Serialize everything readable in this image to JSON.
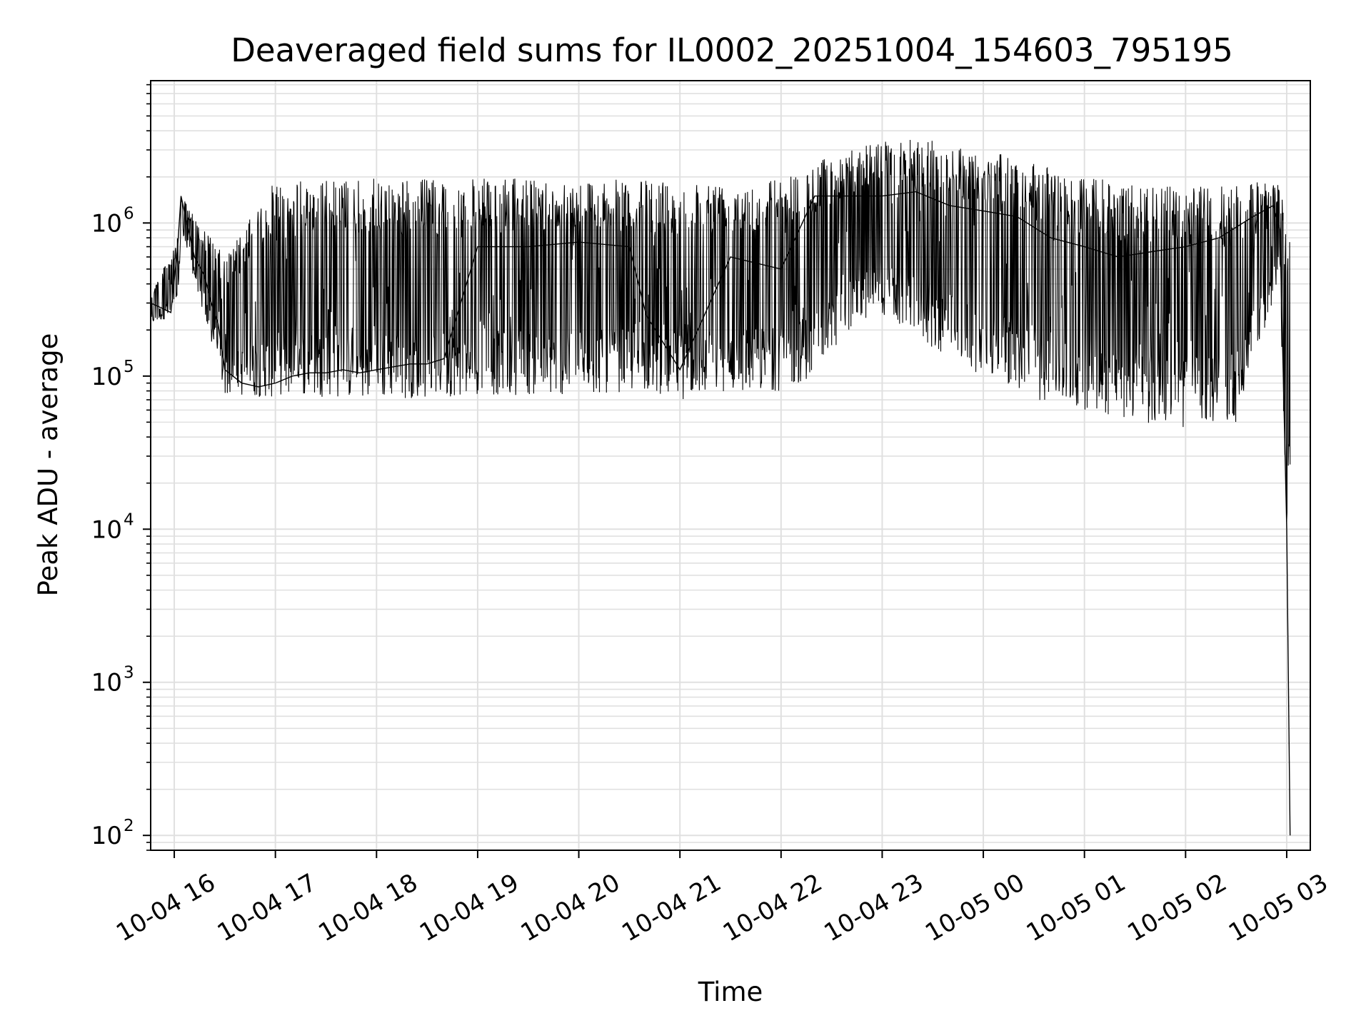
{
  "chart_data": {
    "type": "line",
    "title": "Deaveraged field sums for IL0002_20251004_154603_795195",
    "xlabel": "Time",
    "ylabel": "Peak ADU - average",
    "yscale": "log",
    "ylim": [
      80,
      8500000
    ],
    "xlim": [
      "2025-10-04 15:46",
      "2025-10-05 03:14"
    ],
    "grid": true,
    "line_color": "#000000",
    "grid_color": "#e0e0e0",
    "x_ticks": [
      {
        "label": "10-04 16",
        "time": "2025-10-04 16:00"
      },
      {
        "label": "10-04 17",
        "time": "2025-10-04 17:00"
      },
      {
        "label": "10-04 18",
        "time": "2025-10-04 18:00"
      },
      {
        "label": "10-04 19",
        "time": "2025-10-04 19:00"
      },
      {
        "label": "10-04 20",
        "time": "2025-10-04 20:00"
      },
      {
        "label": "10-04 21",
        "time": "2025-10-04 21:00"
      },
      {
        "label": "10-04 22",
        "time": "2025-10-04 22:00"
      },
      {
        "label": "10-04 23",
        "time": "2025-10-04 23:00"
      },
      {
        "label": "10-05 00",
        "time": "2025-10-05 00:00"
      },
      {
        "label": "10-05 01",
        "time": "2025-10-05 01:00"
      },
      {
        "label": "10-05 02",
        "time": "2025-10-05 02:00"
      },
      {
        "label": "10-05 03",
        "time": "2025-10-05 03:00"
      }
    ],
    "y_ticks": [
      {
        "base": "10",
        "exp": "2",
        "value": 100
      },
      {
        "base": "10",
        "exp": "3",
        "value": 1000
      },
      {
        "base": "10",
        "exp": "4",
        "value": 10000
      },
      {
        "base": "10",
        "exp": "5",
        "value": 100000
      },
      {
        "base": "10",
        "exp": "6",
        "value": 1000000
      }
    ],
    "series": [
      {
        "x": [
          "2025-10-04 15:46",
          "2025-10-04 15:52",
          "2025-10-04 15:58",
          "2025-10-04 16:02",
          "2025-10-04 16:04",
          "2025-10-04 16:08",
          "2025-10-04 16:12",
          "2025-10-04 16:18",
          "2025-10-04 16:22",
          "2025-10-04 16:26",
          "2025-10-04 16:30",
          "2025-10-04 16:40",
          "2025-10-04 16:50",
          "2025-10-04 17:00",
          "2025-10-04 17:10",
          "2025-10-04 17:20",
          "2025-10-04 17:30",
          "2025-10-04 17:40",
          "2025-10-04 17:50",
          "2025-10-04 18:00",
          "2025-10-04 18:10",
          "2025-10-04 18:20",
          "2025-10-04 18:30",
          "2025-10-04 18:40",
          "2025-10-04 19:00",
          "2025-10-04 19:30",
          "2025-10-04 20:00",
          "2025-10-04 20:30",
          "2025-10-04 20:40",
          "2025-10-04 21:00",
          "2025-10-04 21:30",
          "2025-10-04 22:00",
          "2025-10-04 22:20",
          "2025-10-04 22:40",
          "2025-10-04 23:00",
          "2025-10-04 23:20",
          "2025-10-04 23:40",
          "2025-10-05 00:00",
          "2025-10-05 00:20",
          "2025-10-05 00:40",
          "2025-10-05 01:00",
          "2025-10-05 01:20",
          "2025-10-05 01:40",
          "2025-10-05 02:00",
          "2025-10-05 02:20",
          "2025-10-05 02:40",
          "2025-10-05 02:52",
          "2025-10-05 02:56",
          "2025-10-05 03:00",
          "2025-10-05 03:02"
        ],
        "y": [
          300000,
          280000,
          260000,
          700000,
          1500000,
          950000,
          600000,
          450000,
          300000,
          220000,
          110000,
          90000,
          85000,
          90000,
          100000,
          105000,
          105000,
          110000,
          105000,
          110000,
          115000,
          120000,
          120000,
          130000,
          700000,
          700000,
          750000,
          700000,
          250000,
          110000,
          600000,
          500000,
          1500000,
          1500000,
          1500000,
          1600000,
          1300000,
          1200000,
          1100000,
          800000,
          700000,
          600000,
          650000,
          700000,
          800000,
          1100000,
          1300000,
          900000,
          10000,
          100
        ]
      }
    ],
    "envelope": {
      "x": [
        "2025-10-04 15:46",
        "2025-10-04 16:02",
        "2025-10-04 16:04",
        "2025-10-04 16:30",
        "2025-10-04 17:00",
        "2025-10-04 17:10",
        "2025-10-04 18:00",
        "2025-10-04 19:00",
        "2025-10-04 20:00",
        "2025-10-04 20:40",
        "2025-10-04 21:00",
        "2025-10-04 21:30",
        "2025-10-04 22:00",
        "2025-10-04 22:20",
        "2025-10-04 22:40",
        "2025-10-04 23:00",
        "2025-10-04 23:30",
        "2025-10-05 00:00",
        "2025-10-05 00:30",
        "2025-10-05 01:00",
        "2025-10-05 01:30",
        "2025-10-05 02:00",
        "2025-10-05 02:30",
        "2025-10-05 02:56",
        "2025-10-05 03:00"
      ],
      "upper": [
        350000,
        800000,
        1500000,
        600000,
        1900000,
        1900000,
        1950000,
        1950000,
        1950000,
        1900000,
        1900000,
        1900000,
        2000000,
        2500000,
        3000000,
        3500000,
        3500000,
        3000000,
        2500000,
        2000000,
        1800000,
        1700000,
        1800000,
        1900000,
        1000000
      ],
      "lower": [
        220000,
        250000,
        900000,
        75000,
        72000,
        75000,
        70000,
        75000,
        75000,
        80000,
        70000,
        80000,
        80000,
        100000,
        200000,
        250000,
        150000,
        100000,
        70000,
        60000,
        50000,
        45000,
        50000,
        400000,
        10000
      ]
    }
  }
}
